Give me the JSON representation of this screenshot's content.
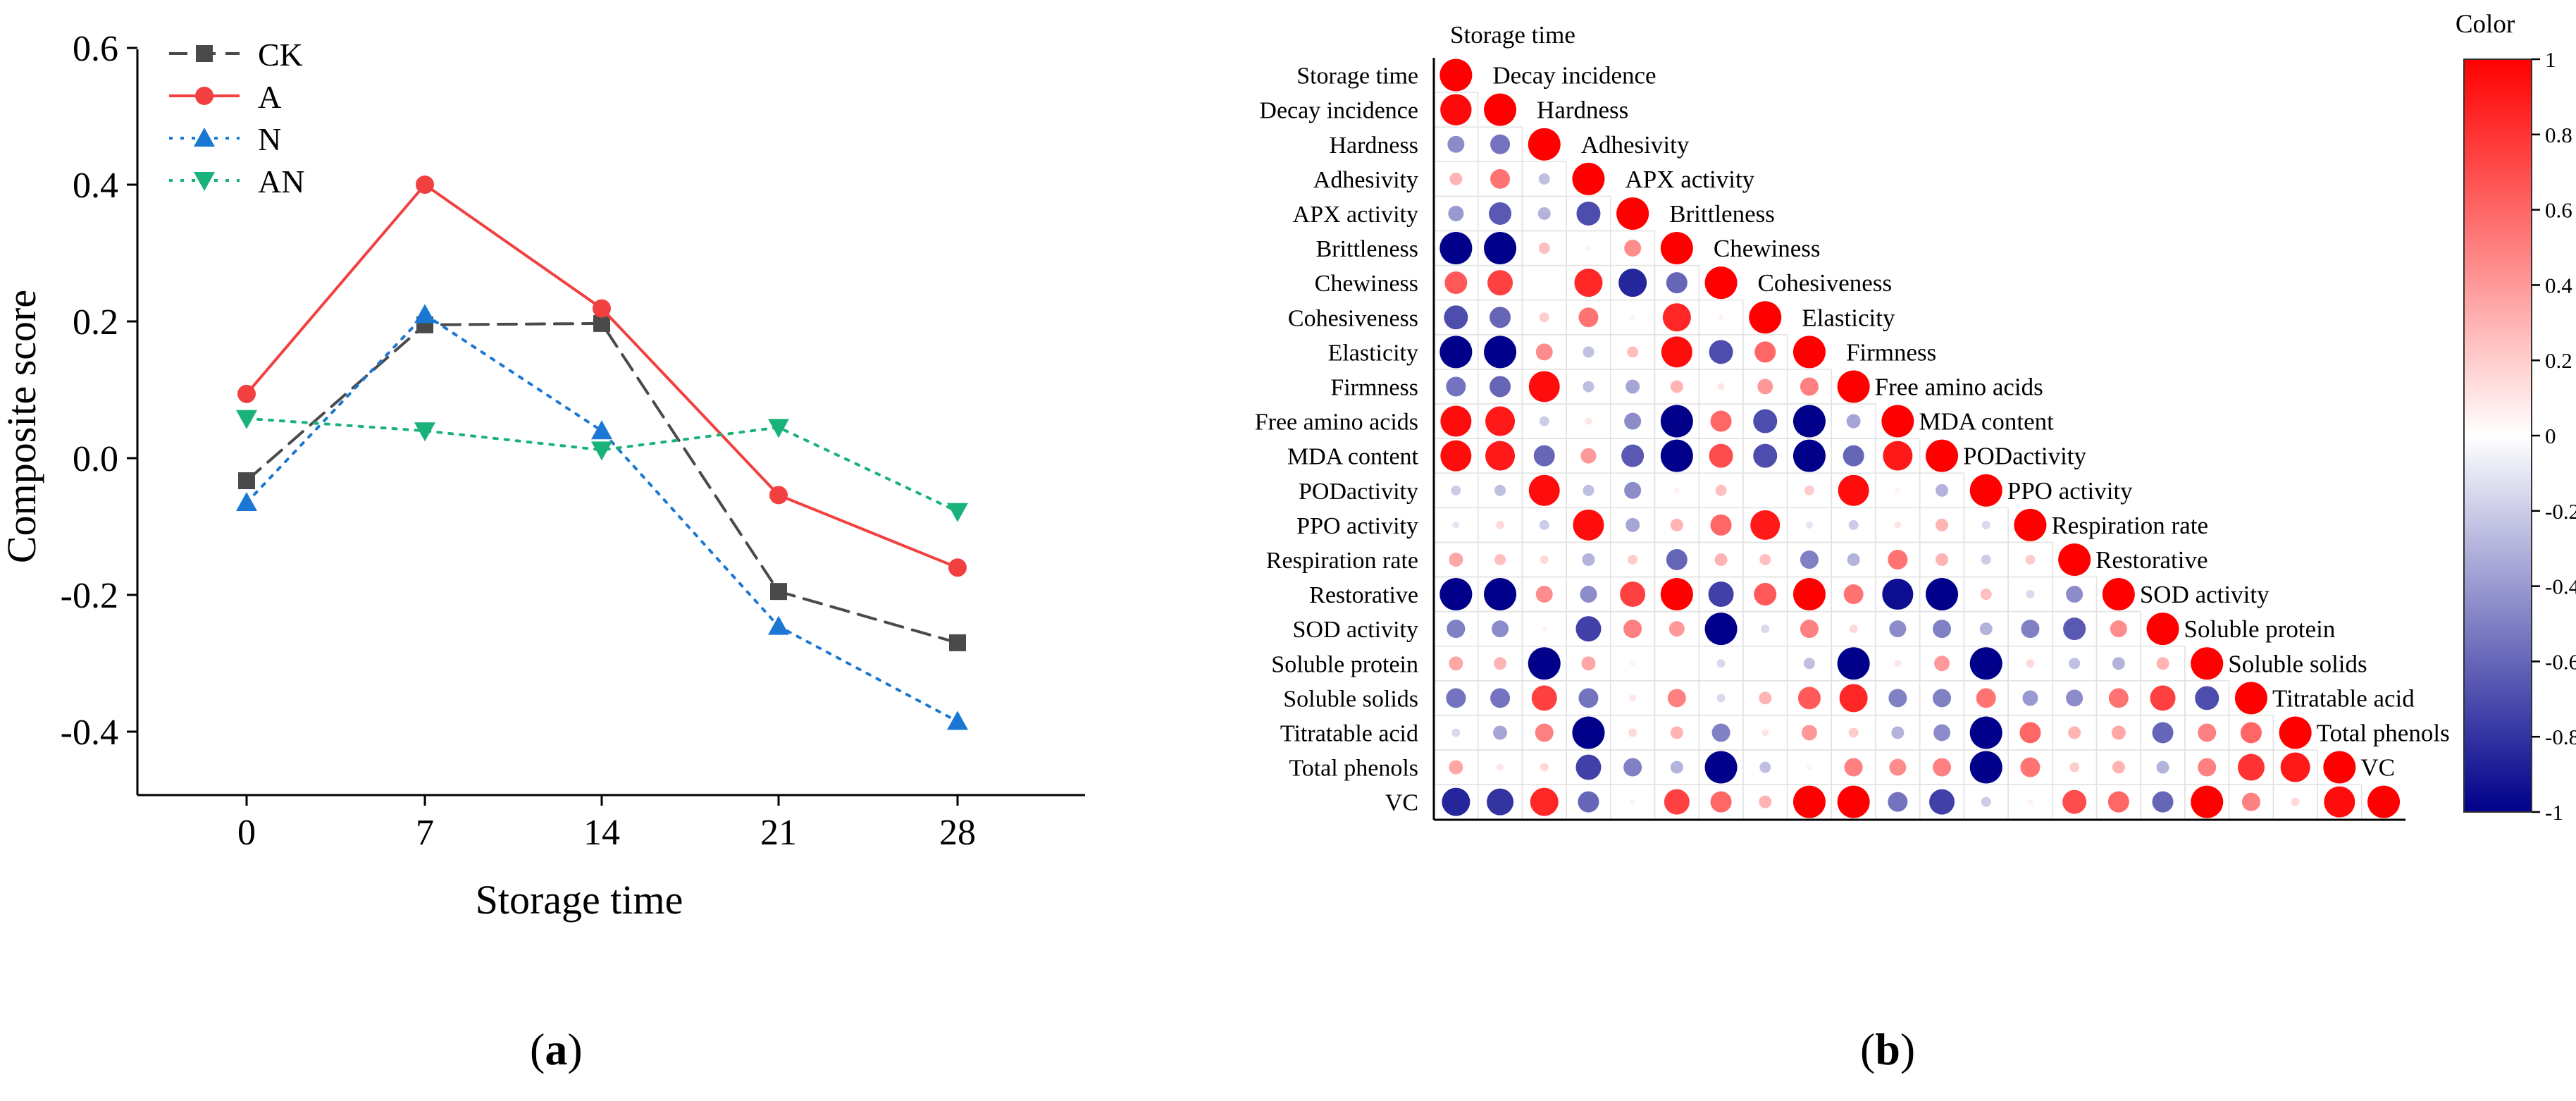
{
  "chart_data": [
    {
      "type": "line",
      "panel": "a",
      "title": "",
      "xlabel": "Storage time",
      "ylabel": "Composite score",
      "x": [
        0,
        7,
        14,
        21,
        28
      ],
      "xticks": [
        "0",
        "7",
        "14",
        "21",
        "28"
      ],
      "yticks": [
        "0.6",
        "0.4",
        "0.2",
        "0.0",
        "-0.2",
        "-0.4"
      ],
      "ylim": [
        -0.5,
        0.6
      ],
      "legend": "top-left",
      "series": [
        {
          "name": "CK",
          "values": [
            -0.033,
            0.195,
            0.197,
            -0.195,
            -0.27
          ],
          "color": "#4a4a4a",
          "marker": "square",
          "dash": "long-dash"
        },
        {
          "name": "A",
          "values": [
            0.094,
            0.4,
            0.219,
            -0.054,
            -0.16
          ],
          "color": "#f24040",
          "marker": "circle",
          "dash": "solid"
        },
        {
          "name": "N",
          "values": [
            -0.065,
            0.21,
            0.04,
            -0.246,
            -0.385
          ],
          "color": "#1a78d4",
          "marker": "triangle-up",
          "dash": "dot"
        },
        {
          "name": "AN",
          "values": [
            0.058,
            0.04,
            0.012,
            0.045,
            -0.078
          ],
          "color": "#19b27a",
          "marker": "triangle-down",
          "dash": "dot"
        }
      ]
    },
    {
      "type": "heatmap",
      "panel": "b",
      "title": "Color",
      "variables": [
        "Storage time",
        "Decay incidence",
        "Hardness",
        "Adhesivity",
        "APX activity",
        "Brittleness",
        "Chewiness",
        "Cohesiveness",
        "Elasticity",
        "Firmness",
        "Free amino acids",
        "MDA content",
        "PODactivity",
        "PPO activity",
        "Respiration rate",
        "Restorative",
        "SOD activity",
        "Soluble protein",
        "Soluble solids",
        "Titratable acid",
        "Total phenols",
        "VC"
      ],
      "colorbar_ticks": [
        "1",
        "0.8",
        "0.6",
        "0.4",
        "0.2",
        "0",
        "-0.2",
        "-0.4",
        "-0.6",
        "-0.8",
        "-1"
      ],
      "colorbar_range": [
        -1,
        1
      ],
      "lower_triangle": [
        [
          1
        ],
        [
          0.96,
          1
        ],
        [
          -0.45,
          -0.55,
          1
        ],
        [
          0.3,
          0.55,
          -0.25,
          1
        ],
        [
          -0.4,
          -0.65,
          -0.3,
          -0.7,
          1
        ],
        [
          -1.0,
          -1.0,
          0.25,
          0.05,
          0.45,
          1
        ],
        [
          0.65,
          0.75,
          0,
          0.85,
          -0.85,
          -0.6,
          1
        ],
        [
          -0.7,
          -0.6,
          0.2,
          0.55,
          0.05,
          0.85,
          0.05,
          1
        ],
        [
          -1.0,
          -1.0,
          0.45,
          -0.25,
          0.25,
          0.95,
          -0.7,
          0.6,
          1
        ],
        [
          -0.55,
          -0.6,
          0.95,
          -0.25,
          -0.35,
          0.3,
          0.1,
          0.4,
          0.5,
          1
        ],
        [
          0.95,
          0.9,
          -0.2,
          0.1,
          -0.45,
          -1.0,
          0.6,
          -0.7,
          -1.0,
          -0.35,
          1
        ],
        [
          0.95,
          0.9,
          -0.6,
          0.4,
          -0.65,
          -1.0,
          0.7,
          -0.7,
          -1.0,
          -0.6,
          0.9,
          1
        ],
        [
          -0.2,
          -0.25,
          0.95,
          -0.25,
          -0.45,
          0.05,
          0.25,
          0,
          0.2,
          0.95,
          0.05,
          -0.3,
          1
        ],
        [
          -0.1,
          0.15,
          -0.2,
          0.95,
          -0.35,
          0.3,
          0.6,
          0.9,
          -0.1,
          -0.2,
          0.1,
          0.3,
          -0.15,
          1
        ],
        [
          0.35,
          0.25,
          0.15,
          -0.3,
          0.2,
          -0.6,
          0.3,
          0.25,
          -0.5,
          -0.3,
          0.55,
          0.3,
          -0.2,
          0.2,
          1
        ],
        [
          -1.0,
          -1.0,
          0.45,
          -0.45,
          0.75,
          1.0,
          -0.75,
          0.65,
          1.0,
          0.55,
          -0.95,
          -1.0,
          0.25,
          -0.15,
          -0.45,
          1
        ],
        [
          -0.5,
          -0.45,
          0.05,
          -0.75,
          0.5,
          0.4,
          -1.0,
          -0.15,
          0.5,
          0.15,
          -0.45,
          -0.5,
          -0.3,
          -0.5,
          -0.65,
          0.45,
          1
        ],
        [
          0.35,
          0.3,
          -1.0,
          0.35,
          0.05,
          0,
          -0.15,
          0,
          -0.25,
          -1.0,
          0.1,
          0.4,
          -1.0,
          0.15,
          -0.25,
          -0.3,
          0.3,
          1
        ],
        [
          -0.55,
          -0.55,
          0.75,
          -0.55,
          0.1,
          0.5,
          -0.15,
          0.3,
          0.65,
          0.85,
          -0.5,
          -0.5,
          0.55,
          -0.4,
          -0.45,
          0.55,
          0.75,
          -0.7,
          1
        ],
        [
          -0.15,
          -0.35,
          0.5,
          -1.0,
          0.15,
          0.3,
          -0.5,
          0.1,
          0.4,
          0.2,
          -0.3,
          -0.45,
          -1.0,
          0.6,
          0.3,
          0.35,
          -0.6,
          0.5,
          0.6,
          1
        ],
        [
          0.35,
          0.1,
          0.15,
          -0.75,
          -0.5,
          -0.3,
          -1.0,
          -0.25,
          0.05,
          0.5,
          0.45,
          0.5,
          -1.0,
          0.55,
          0.2,
          0.3,
          -0.3,
          0.5,
          0.8,
          0.9,
          1
        ],
        [
          -0.85,
          -0.8,
          0.85,
          -0.6,
          0.05,
          0.75,
          0.6,
          0.3,
          1.0,
          1.0,
          -0.55,
          -0.75,
          -0.2,
          0.05,
          0.7,
          0.6,
          -0.6,
          1.0,
          0.5,
          0.15,
          0.95,
          1
        ]
      ]
    }
  ],
  "labels": {
    "panel_a": "a",
    "panel_b": "b"
  }
}
